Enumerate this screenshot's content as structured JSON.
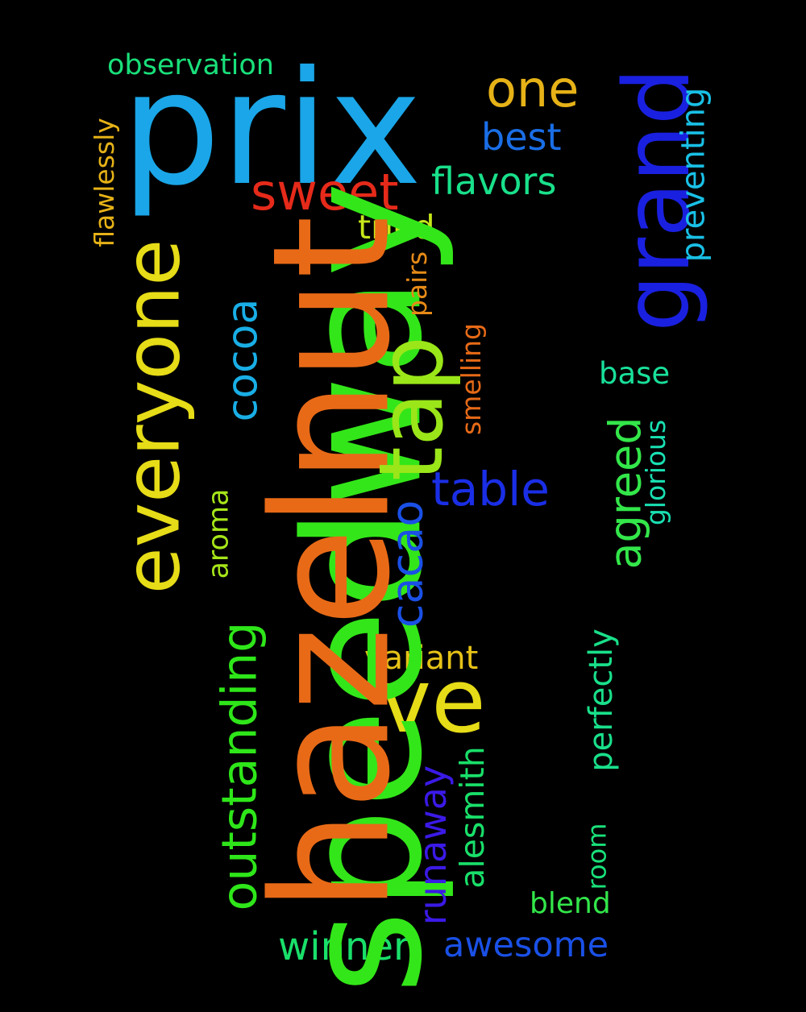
{
  "words": [
    {
      "text": "prix",
      "color": "#1aa6e8"
    },
    {
      "text": "speedway",
      "color": "#33e619"
    },
    {
      "text": "hazelnut",
      "color": "#e86a17"
    },
    {
      "text": "grand",
      "color": "#1a20e0"
    },
    {
      "text": "everyone",
      "color": "#e6dc17"
    },
    {
      "text": "tap",
      "color": "#9ae619"
    },
    {
      "text": "one",
      "color": "#e6b217"
    },
    {
      "text": "sweet",
      "color": "#e62a1a"
    },
    {
      "text": "flavors",
      "color": "#19e08a"
    },
    {
      "text": "best",
      "color": "#1a6ee6"
    },
    {
      "text": "tried",
      "color": "#c6e619"
    },
    {
      "text": "observation",
      "color": "#19e07a"
    },
    {
      "text": "flawlessly",
      "color": "#e6b217"
    },
    {
      "text": "preventing",
      "color": "#19c0e6"
    },
    {
      "text": "pairs",
      "color": "#e68a17"
    },
    {
      "text": "cocoa",
      "color": "#19aee6"
    },
    {
      "text": "smelling",
      "color": "#e66a17"
    },
    {
      "text": "base",
      "color": "#19e09a"
    },
    {
      "text": "table",
      "color": "#1a2ee6"
    },
    {
      "text": "agreed",
      "color": "#33e64a"
    },
    {
      "text": "glorious",
      "color": "#19e0b2"
    },
    {
      "text": "cacao",
      "color": "#1a50e6"
    },
    {
      "text": "aroma",
      "color": "#a6e619"
    },
    {
      "text": "outstanding",
      "color": "#2ee619"
    },
    {
      "text": "ve",
      "color": "#e6dc17"
    },
    {
      "text": "variant",
      "color": "#e6c217"
    },
    {
      "text": "perfectly",
      "color": "#19e08a"
    },
    {
      "text": "alesmith",
      "color": "#19e06a"
    },
    {
      "text": "runaway",
      "color": "#3a1ae6"
    },
    {
      "text": "room",
      "color": "#19e07a"
    },
    {
      "text": "blend",
      "color": "#33e64a"
    },
    {
      "text": "winner",
      "color": "#19e06a"
    },
    {
      "text": "awesome",
      "color": "#1a50e6"
    }
  ]
}
